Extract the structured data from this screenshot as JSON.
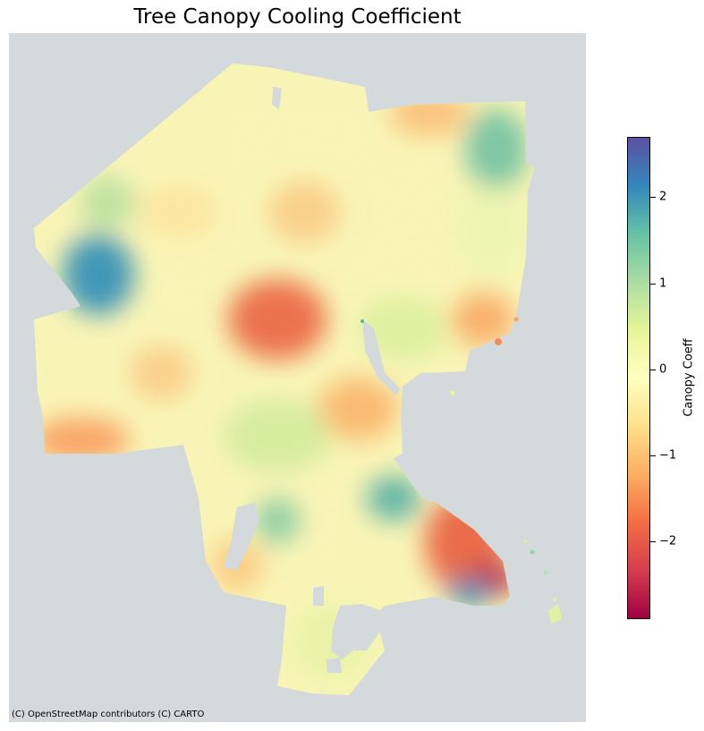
{
  "map": {
    "title": "Tree Canopy Cooling Coefficient",
    "attribution": "(C) OpenStreetMap contributors (C) CARTO",
    "basemap_color": "#d4d9dc"
  },
  "colorbar": {
    "label": "Canopy Coeff",
    "colormap": "Spectral",
    "range": [
      -2.9,
      2.7
    ],
    "ticks": [
      {
        "value": 2,
        "label": "2"
      },
      {
        "value": 1,
        "label": "1"
      },
      {
        "value": 0,
        "label": "0"
      },
      {
        "value": -1,
        "label": "−1"
      },
      {
        "value": -2,
        "label": "−2"
      }
    ]
  },
  "chart_data": {
    "type": "heatmap",
    "title": "Tree Canopy Cooling Coefficient",
    "colorbar_label": "Canopy Coeff",
    "value_range": [
      -2.9,
      2.7
    ],
    "colormap": "Spectral"
  }
}
